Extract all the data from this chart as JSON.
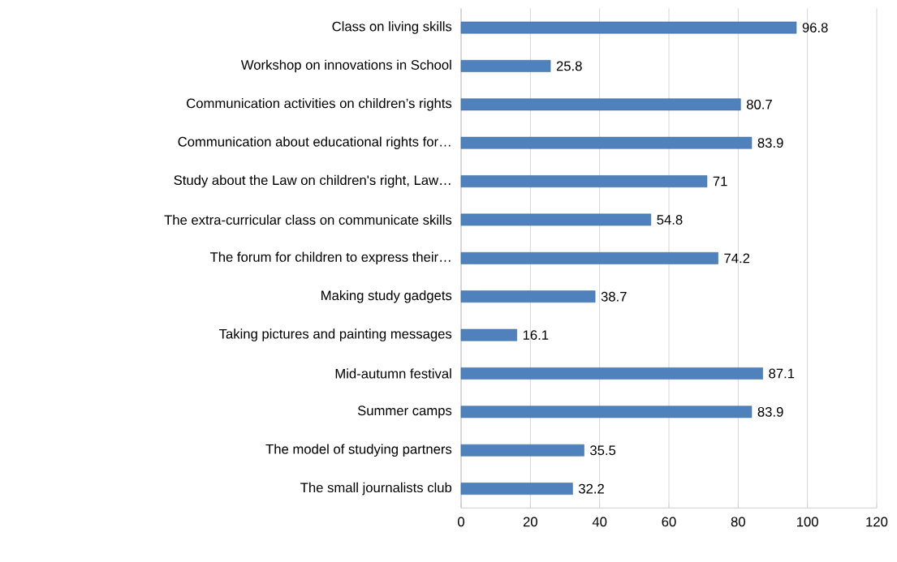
{
  "chart_data": {
    "type": "bar",
    "orientation": "horizontal",
    "categories": [
      "Class on living skills",
      "Workshop on innovations in School",
      "Communication activities on children’s rights",
      "Communication about educational rights for…",
      "Study about the Law on children's right, Law…",
      "The extra-curricular class on communicate skills",
      "The forum for children to express their…",
      "Making study gadgets",
      "Taking pictures and painting messages",
      "Mid-autumn festival",
      "Summer camps",
      "The model of studying partners",
      "The small journalists club"
    ],
    "values": [
      96.8,
      25.8,
      80.7,
      83.9,
      71,
      54.8,
      74.2,
      38.7,
      16.1,
      87.1,
      83.9,
      35.5,
      32.2
    ],
    "color": "#4f81bd",
    "xlim": [
      0,
      120
    ],
    "xticks": [
      0,
      20,
      40,
      60,
      80,
      100,
      120
    ],
    "grid": "x",
    "data_labels": true
  }
}
